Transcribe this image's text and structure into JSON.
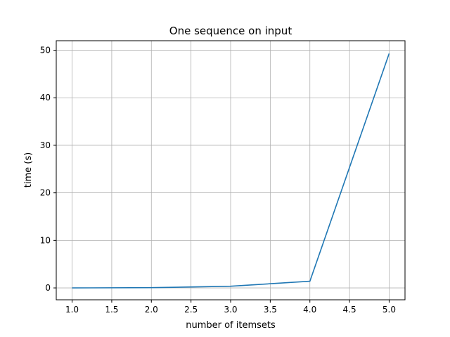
{
  "chart_data": {
    "type": "line",
    "title": "One sequence on input",
    "xlabel": "number of itemsets",
    "ylabel": "time (s)",
    "xlim": [
      0.8,
      5.2
    ],
    "ylim": [
      -2.5,
      52
    ],
    "xticks": [
      1.0,
      1.5,
      2.0,
      2.5,
      3.0,
      3.5,
      4.0,
      4.5,
      5.0
    ],
    "xtick_labels": [
      "1.0",
      "1.5",
      "2.0",
      "2.5",
      "3.0",
      "3.5",
      "4.0",
      "4.5",
      "5.0"
    ],
    "yticks": [
      0,
      10,
      20,
      30,
      40,
      50
    ],
    "ytick_labels": [
      "0",
      "10",
      "20",
      "30",
      "40",
      "50"
    ],
    "grid": true,
    "series": [
      {
        "color": "#1f77b4",
        "x": [
          1,
          2,
          3,
          4,
          5
        ],
        "y": [
          0.0,
          0.05,
          0.35,
          1.4,
          49.3
        ]
      }
    ]
  }
}
